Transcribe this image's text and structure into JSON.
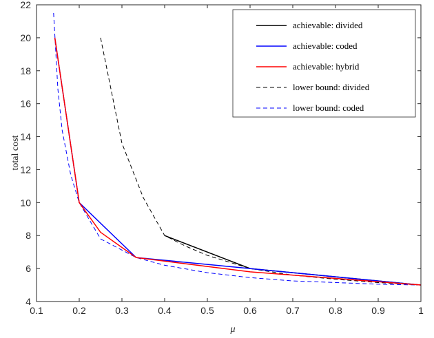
{
  "chart_data": {
    "type": "line",
    "title": "",
    "xlabel": "μ",
    "ylabel": "total cost",
    "xlim": [
      0.1,
      1.0
    ],
    "ylim": [
      4,
      22
    ],
    "xticks": [
      0.1,
      0.2,
      0.3,
      0.4,
      0.5,
      0.6,
      0.7,
      0.8,
      0.9,
      1.0
    ],
    "xtick_labels": [
      "0.1",
      "0.2",
      "0.3",
      "0.4",
      "0.5",
      "0.6",
      "0.7",
      "0.8",
      "0.9",
      "1"
    ],
    "yticks": [
      4,
      6,
      8,
      10,
      12,
      14,
      16,
      18,
      20,
      22
    ],
    "ytick_labels": [
      "4",
      "6",
      "8",
      "10",
      "12",
      "14",
      "16",
      "18",
      "20",
      "22"
    ],
    "grid": false,
    "legend_position": "top-right",
    "series": [
      {
        "name": "achievable: divided",
        "color": "#000000",
        "style": "solid",
        "points": [
          [
            0.4,
            8.0
          ],
          [
            0.6,
            6.0
          ],
          [
            1.0,
            5.0
          ]
        ]
      },
      {
        "name": "achievable: coded",
        "color": "#0000ff",
        "style": "solid",
        "points": [
          [
            0.1429,
            20.0
          ],
          [
            0.2,
            10.0
          ],
          [
            0.3333,
            6.667
          ],
          [
            0.6,
            6.0
          ],
          [
            1.0,
            5.0
          ]
        ]
      },
      {
        "name": "achievable: hybrid",
        "color": "#ff0000",
        "style": "solid",
        "points": [
          [
            0.1429,
            20.0
          ],
          [
            0.2,
            10.0
          ],
          [
            0.25,
            8.2
          ],
          [
            0.3333,
            6.667
          ],
          [
            0.6,
            5.8
          ],
          [
            1.0,
            5.0
          ]
        ]
      },
      {
        "name": "lower bound: divided",
        "color": "#000000",
        "style": "dashed",
        "points": [
          [
            0.25,
            20.0
          ],
          [
            0.3,
            13.6
          ],
          [
            0.35,
            10.3
          ],
          [
            0.4,
            8.0
          ],
          [
            0.45,
            7.35
          ],
          [
            0.5,
            6.8
          ],
          [
            0.6,
            6.0
          ],
          [
            0.7,
            5.6
          ],
          [
            0.8,
            5.35
          ],
          [
            0.9,
            5.15
          ],
          [
            1.0,
            5.0
          ]
        ]
      },
      {
        "name": "lower bound: coded",
        "color": "#0000ff",
        "style": "dashed",
        "points": [
          [
            0.14,
            21.5
          ],
          [
            0.15,
            16.9
          ],
          [
            0.16,
            14.4
          ],
          [
            0.18,
            11.7
          ],
          [
            0.2,
            10.0
          ],
          [
            0.25,
            7.8
          ],
          [
            0.3333,
            6.667
          ],
          [
            0.4,
            6.2
          ],
          [
            0.5,
            5.75
          ],
          [
            0.6,
            5.45
          ],
          [
            0.7,
            5.25
          ],
          [
            0.8,
            5.15
          ],
          [
            0.9,
            5.05
          ],
          [
            1.0,
            5.0
          ]
        ]
      }
    ]
  }
}
